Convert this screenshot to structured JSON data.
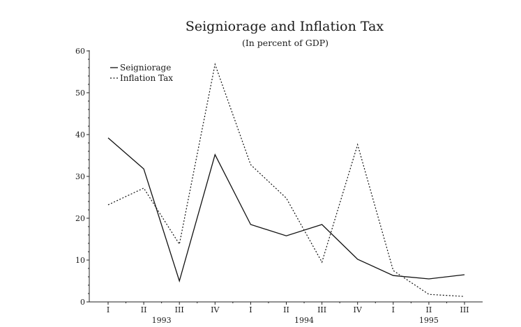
{
  "chart_data": {
    "type": "line",
    "title": "Seigniorage and Inflation Tax",
    "subtitle": "(In percent of GDP)",
    "xlabel": "",
    "ylabel": "",
    "categories": [
      "I",
      "II",
      "III",
      "IV",
      "I",
      "II",
      "III",
      "IV",
      "I",
      "II",
      "III"
    ],
    "year_labels": [
      {
        "label": "1993",
        "center_index": 1.5
      },
      {
        "label": "1994",
        "center_index": 5.5
      },
      {
        "label": "1995",
        "center_index": 9
      }
    ],
    "ylim": [
      0,
      60
    ],
    "yticks": [
      0,
      10,
      20,
      30,
      40,
      50,
      60
    ],
    "grid": false,
    "legend_position": "top-left",
    "series": [
      {
        "name": "Seigniorage",
        "style": "solid",
        "values": [
          39.2,
          31.8,
          5.0,
          35.2,
          18.5,
          15.8,
          18.5,
          10.2,
          6.3,
          5.5,
          6.5
        ]
      },
      {
        "name": "Inflation Tax",
        "style": "dotted",
        "values": [
          23.2,
          27.2,
          13.8,
          56.8,
          32.8,
          24.8,
          9.5,
          37.6,
          7.5,
          1.8,
          1.3
        ]
      }
    ]
  }
}
